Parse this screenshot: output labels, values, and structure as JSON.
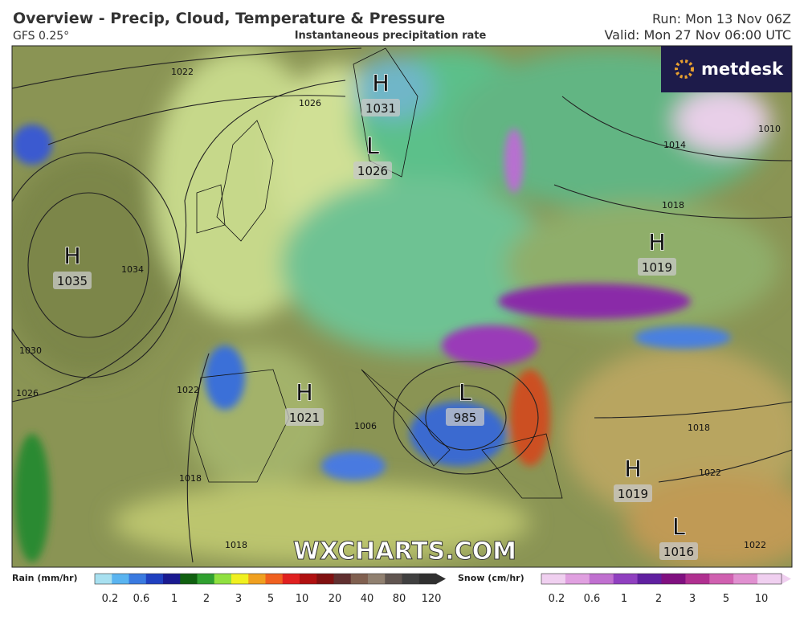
{
  "header": {
    "title": "Overview - Precip, Cloud, Temperature & Pressure",
    "model": "GFS 0.25°",
    "subtitle": "Instantaneous precipitation rate",
    "run": "Run: Mon 13 Nov 06Z",
    "valid": "Valid: Mon 27 Nov 06:00 UTC"
  },
  "logo": "metdesk",
  "watermark": "WXCHARTS.COM",
  "pressure_centers": [
    {
      "kind": "H",
      "value": 1031
    },
    {
      "kind": "L",
      "value": 1026
    },
    {
      "kind": "H",
      "value": 1035
    },
    {
      "kind": "H",
      "value": 1019
    },
    {
      "kind": "H",
      "value": 1021
    },
    {
      "kind": "L",
      "value": 985
    },
    {
      "kind": "H",
      "value": 1019
    },
    {
      "kind": "L",
      "value": 1016
    }
  ],
  "isobar_labels": [
    1022,
    1026,
    1034,
    1030,
    1026,
    1022,
    1018,
    1018,
    1010,
    1014,
    1018,
    1018,
    1022,
    1022,
    1006
  ],
  "legend": {
    "rain": {
      "title": "Rain (mm/hr)",
      "ticks": [
        0.2,
        0.6,
        1,
        2,
        3,
        5,
        10,
        20,
        40,
        80,
        120
      ]
    },
    "snow": {
      "title": "Snow (cm/hr)",
      "ticks": [
        0.2,
        0.6,
        1,
        2,
        3,
        5,
        10
      ]
    }
  }
}
